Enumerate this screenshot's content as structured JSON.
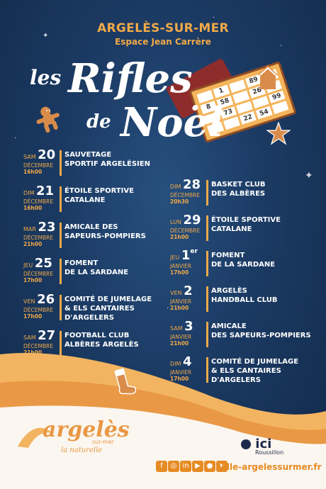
{
  "header": {
    "town": "ARGELÈS-SUR-MER",
    "venue": "Espace Jean Carrère"
  },
  "title": {
    "les": "les",
    "rifles": "Rifles",
    "de": "de",
    "noel": "Noël"
  },
  "card_numbers": [
    "",
    "",
    "",
    "89",
    "1",
    "",
    "",
    "",
    "",
    "",
    "",
    "58",
    "",
    "73",
    "",
    "",
    "",
    "22",
    "54",
    ""
  ],
  "card_numbers_visible": [
    "89",
    "1",
    "8",
    "58",
    "26",
    "73",
    "99",
    "22",
    "54"
  ],
  "events_left": [
    {
      "day": "SAM",
      "num": "20",
      "sup": "",
      "month": "DÉCEMBRE",
      "time": "16h00",
      "name": "SAUVETAGE\nSPORTIF ARGELÉSIEN"
    },
    {
      "day": "DIM",
      "num": "21",
      "sup": "",
      "month": "DÉCEMBRE",
      "time": "16h00",
      "name": "ÉTOILE SPORTIVE\nCATALANE"
    },
    {
      "day": "MAR",
      "num": "23",
      "sup": "",
      "month": "DÉCEMBRE",
      "time": "21h00",
      "name": "AMICALE DES\nSAPEURS-POMPIERS"
    },
    {
      "day": "JEU",
      "num": "25",
      "sup": "",
      "month": "DÉCEMBRE",
      "time": "17h00",
      "name": "FOMENT\nDE LA SARDANE"
    },
    {
      "day": "VEN",
      "num": "26",
      "sup": "",
      "month": "DÉCEMBRE",
      "time": "17h00",
      "name": "COMITÉ DE JUMELAGE\n& ELS CANTAIRES\nD'ARGELERS"
    },
    {
      "day": "SAM",
      "num": "27",
      "sup": "",
      "month": "DÉCEMBRE",
      "time": "21h00",
      "name": "FOOTBALL CLUB\nALBÈRES ARGELÈS"
    }
  ],
  "events_right": [
    {
      "day": "DIM",
      "num": "28",
      "sup": "",
      "month": "DÉCEMBRE",
      "time": "20h30",
      "name": "BASKET CLUB\nDES ALBÈRES"
    },
    {
      "day": "LUN",
      "num": "29",
      "sup": "",
      "month": "DÉCEMBRE",
      "time": "21h00",
      "name": "ÉTOILE SPORTIVE\nCATALANE"
    },
    {
      "day": "JEU",
      "num": "1",
      "sup": "er",
      "month": "JANVIER",
      "time": "17h00",
      "name": "FOMENT\nDE LA SARDANE"
    },
    {
      "day": "VEN",
      "num": "2",
      "sup": "",
      "month": "JANVIER",
      "time": "21h00",
      "name": "ARGELÈS\nHANDBALL CLUB"
    },
    {
      "day": "SAM",
      "num": "3",
      "sup": "",
      "month": "JANVIER",
      "time": "21h00",
      "name": "AMICALE\nDES SAPEURS-POMPIERS"
    },
    {
      "day": "DIM",
      "num": "4",
      "sup": "",
      "month": "JANVIER",
      "time": "17h00",
      "name": "COMITÉ DE JUMELAGE\n& ELS CANTAIRES\nD'ARGELERS"
    }
  ],
  "footer": {
    "brand": "argelès",
    "brand_sub": "sur-mer",
    "brand_tagline": "la naturelle",
    "partner": "ici",
    "partner_sub": "Roussillon",
    "url": "ville-argelessurmer.fr",
    "social": [
      {
        "icon": "facebook-icon",
        "glyph": "f"
      },
      {
        "icon": "instagram-icon",
        "glyph": "◎"
      },
      {
        "icon": "linkedin-icon",
        "glyph": "in"
      },
      {
        "icon": "youtube-icon",
        "glyph": "▶"
      },
      {
        "icon": "flickr-icon",
        "glyph": "●"
      },
      {
        "icon": "pointer-icon",
        "glyph": "➤"
      }
    ]
  },
  "colors": {
    "accent": "#f0a948",
    "background": "#1b3a63",
    "sand": "#f2b461",
    "footer": "#fbf6ef"
  }
}
